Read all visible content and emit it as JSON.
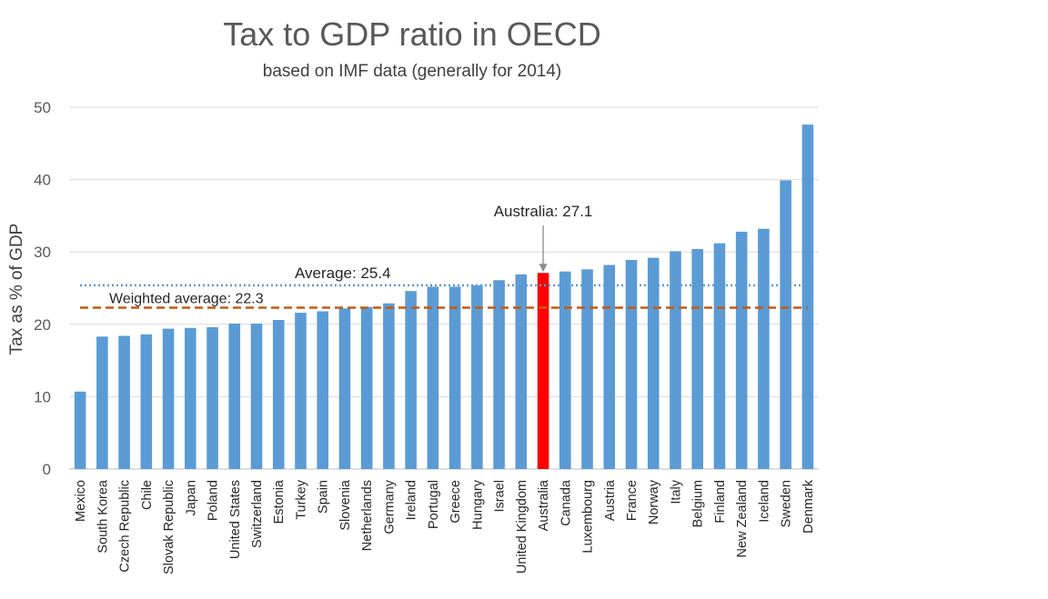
{
  "chart_data": {
    "type": "bar",
    "title": "Tax to GDP ratio in OECD",
    "subtitle": "based on IMF data (generally for 2014)",
    "xlabel": "",
    "ylabel": "Tax as % of GDP",
    "ylim": [
      0,
      50
    ],
    "yticks": [
      0,
      10,
      20,
      30,
      40,
      50
    ],
    "grid": true,
    "categories": [
      "Mexico",
      "South Korea",
      "Czech Republic",
      "Chile",
      "Slovak Republic",
      "Japan",
      "Poland",
      "United States",
      "Switzerland",
      "Estonia",
      "Turkey",
      "Spain",
      "Slovenia",
      "Netherlands",
      "Germany",
      "Ireland",
      "Portugal",
      "Greece",
      "Hungary",
      "Israel",
      "United Kingdom",
      "Australia",
      "Canada",
      "Luxembourg",
      "Austria",
      "France",
      "Norway",
      "Italy",
      "Belgium",
      "Finland",
      "New Zealand",
      "Iceland",
      "Sweden",
      "Denmark"
    ],
    "values": [
      10.7,
      18.3,
      18.4,
      18.6,
      19.4,
      19.5,
      19.6,
      20.1,
      20.1,
      20.6,
      21.6,
      21.8,
      22.2,
      22.4,
      22.9,
      24.6,
      25.2,
      25.2,
      25.4,
      26.1,
      26.9,
      27.1,
      27.3,
      27.6,
      28.2,
      28.9,
      29.2,
      30.1,
      30.4,
      31.2,
      32.8,
      33.2,
      39.9,
      47.6
    ],
    "highlight": {
      "category": "Australia",
      "color": "#ff0000"
    },
    "bar_color": "#5b9bd5",
    "reference_lines": [
      {
        "label": "Average: 25.4",
        "value": 25.4,
        "style": "dotted",
        "color": "#5b9bd5"
      },
      {
        "label": "Weighted average: 22.3",
        "value": 22.3,
        "style": "dashed",
        "color": "#c55a11"
      }
    ],
    "annotation": {
      "label": "Australia: 27.1",
      "category": "Australia"
    }
  }
}
